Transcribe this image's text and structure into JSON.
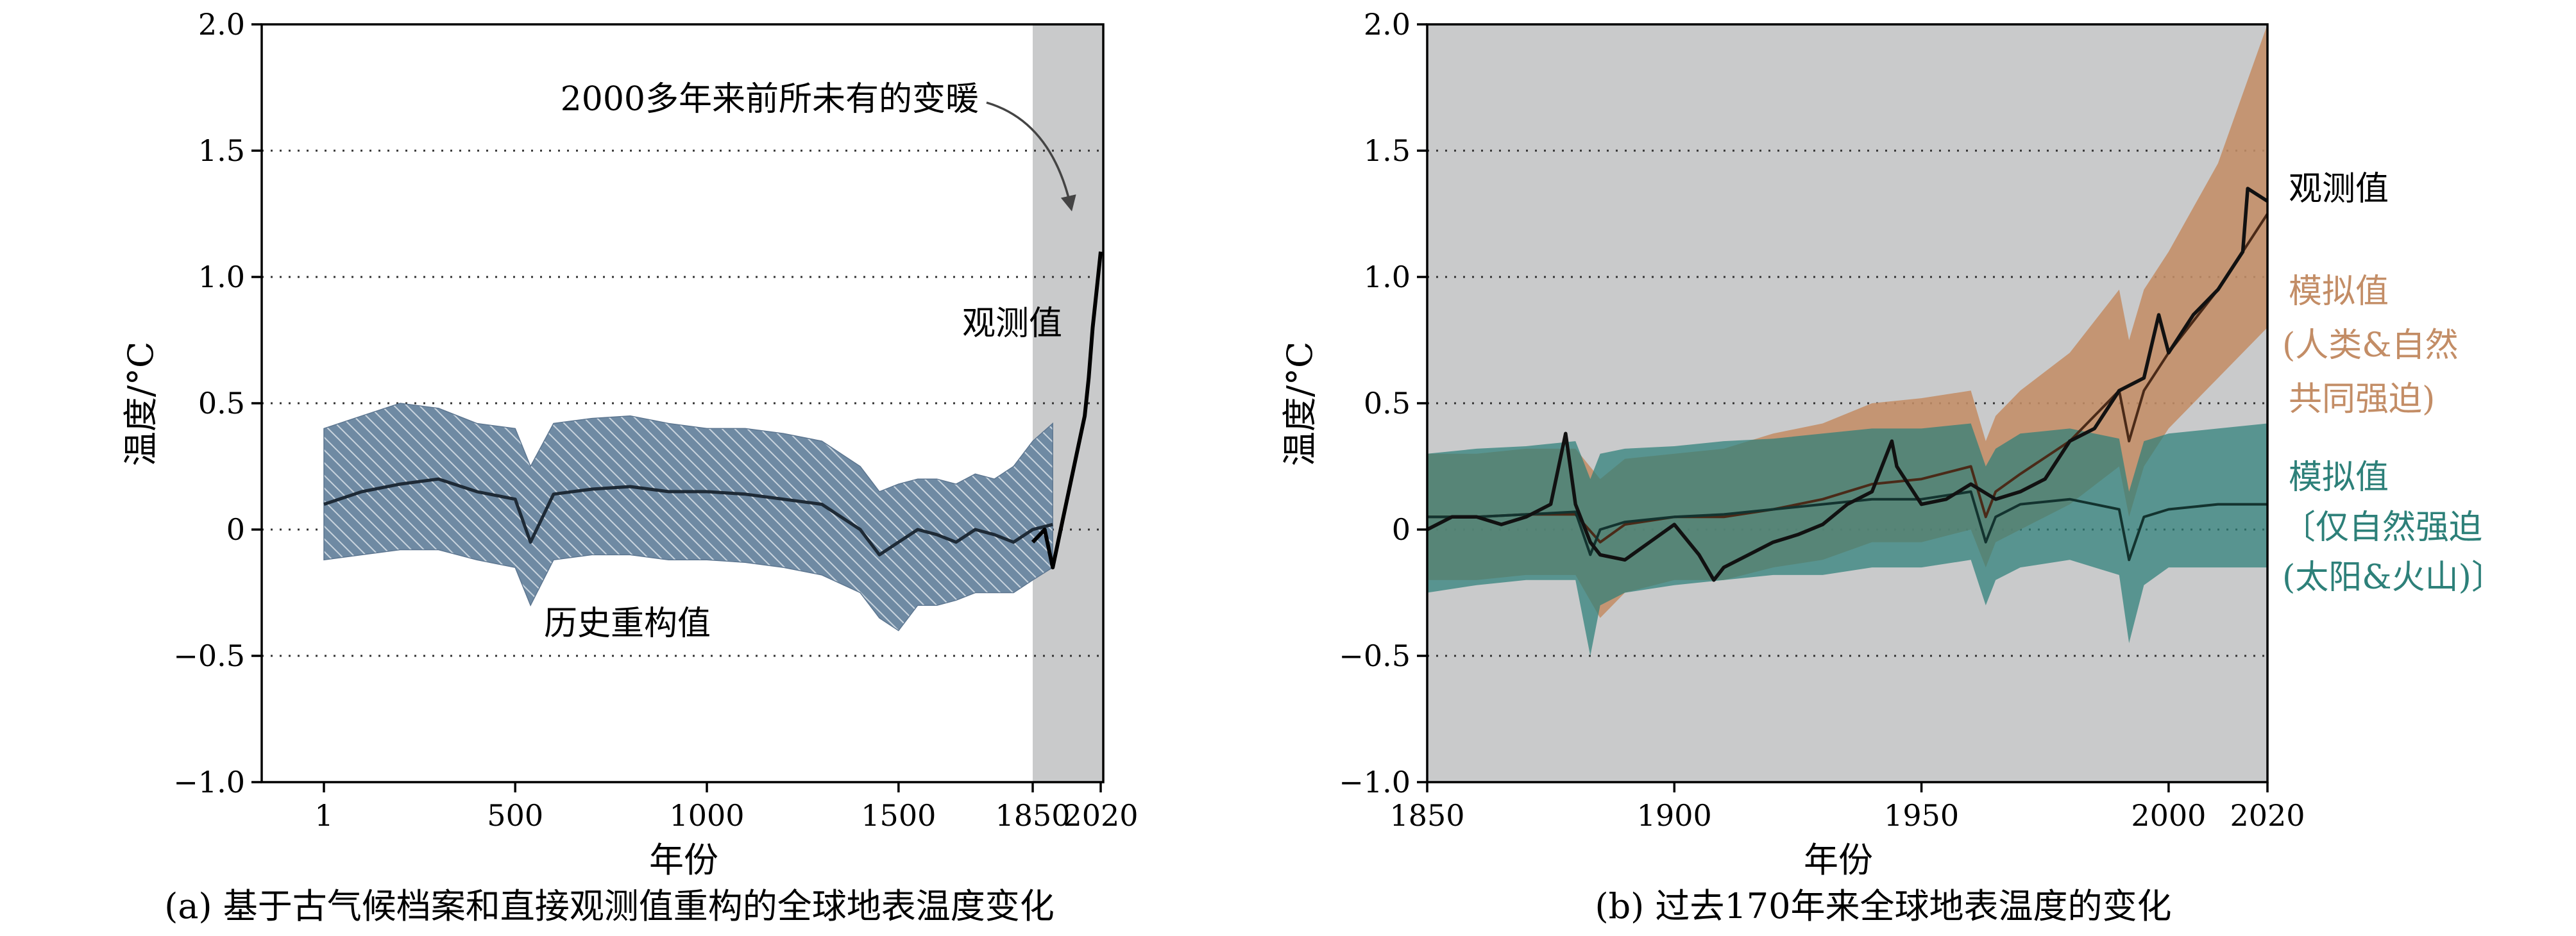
{
  "chart_data": [
    {
      "type": "line",
      "panel_caption": "(a) 基于古气候档案和直接观测值重构的全球地表温度变化",
      "xlabel": "年份",
      "ylabel": "温度/°C",
      "ylim": [
        -1.0,
        2.0
      ],
      "yticks": [
        -1.0,
        -0.5,
        0,
        0.5,
        1.0,
        1.5,
        2.0
      ],
      "ytick_labels": [
        "−1.0",
        "−0.5",
        "0",
        "0.5",
        "1.0",
        "1.5",
        "2.0"
      ],
      "xticks": [
        1,
        500,
        1000,
        1500,
        1850,
        2020
      ],
      "xtick_labels": [
        "1",
        "500",
        "1000",
        "1500",
        "1850",
        "2020"
      ],
      "x_axis_note": "broken scale: 1–1850 compressed, 1850–2020 expanded",
      "grid": "horizontal dotted",
      "shaded_period": {
        "from": 1850,
        "to": 2020,
        "color": "#c9cacb"
      },
      "annotations": {
        "unprecedented": "2000多年来前所未有的变暖",
        "observed": "观测值",
        "reconstruction": "历史重构值"
      },
      "colors": {
        "reconstruction_band": "#6f8aa3",
        "hatch": "#c9d4de",
        "line": "#1e2a36",
        "observed": "#000000"
      },
      "series": [
        {
          "name": "历史重构值",
          "x": [
            1,
            100,
            200,
            300,
            400,
            500,
            540,
            600,
            700,
            800,
            900,
            1000,
            1100,
            1200,
            1300,
            1400,
            1450,
            1500,
            1550,
            1600,
            1650,
            1700,
            1750,
            1800,
            1850,
            1900
          ],
          "y": [
            0.1,
            0.15,
            0.18,
            0.2,
            0.15,
            0.12,
            -0.05,
            0.14,
            0.16,
            0.17,
            0.15,
            0.15,
            0.14,
            0.12,
            0.1,
            0.0,
            -0.1,
            -0.05,
            0.0,
            -0.02,
            -0.05,
            0.0,
            -0.02,
            -0.05,
            0.0,
            0.02
          ],
          "lower": [
            -0.12,
            -0.1,
            -0.08,
            -0.08,
            -0.12,
            -0.15,
            -0.3,
            -0.12,
            -0.1,
            -0.1,
            -0.12,
            -0.12,
            -0.13,
            -0.15,
            -0.18,
            -0.25,
            -0.35,
            -0.4,
            -0.3,
            -0.3,
            -0.28,
            -0.25,
            -0.25,
            -0.25,
            -0.2,
            -0.15
          ],
          "upper": [
            0.4,
            0.45,
            0.5,
            0.48,
            0.42,
            0.4,
            0.25,
            0.42,
            0.44,
            0.45,
            0.42,
            0.4,
            0.4,
            0.38,
            0.35,
            0.25,
            0.15,
            0.18,
            0.2,
            0.2,
            0.18,
            0.22,
            0.2,
            0.25,
            0.35,
            0.42
          ]
        },
        {
          "name": "观测值",
          "x": [
            1850,
            1880,
            1900,
            1920,
            1940,
            1960,
            1980,
            1990,
            2000,
            2010,
            2020
          ],
          "y": [
            -0.05,
            0.0,
            -0.15,
            0.0,
            0.15,
            0.3,
            0.45,
            0.6,
            0.8,
            0.95,
            1.1
          ]
        }
      ]
    },
    {
      "type": "line",
      "panel_caption": "(b) 过去170年来全球地表温度的变化",
      "xlabel": "年份",
      "ylabel": "温度/°C",
      "xlim": [
        1850,
        2020
      ],
      "ylim": [
        -1.0,
        2.0
      ],
      "yticks": [
        -1.0,
        -0.5,
        0,
        0.5,
        1.0,
        1.5,
        2.0
      ],
      "ytick_labels": [
        "−1.0",
        "−0.5",
        "0",
        "0.5",
        "1.0",
        "1.5",
        "2.0"
      ],
      "xticks": [
        1850,
        1900,
        1950,
        2000,
        2020
      ],
      "xtick_labels": [
        "1850",
        "1900",
        "1950",
        "2000",
        "2020"
      ],
      "grid": "horizontal dotted",
      "background": "#c9cacb",
      "colors": {
        "observed": "#111111",
        "human_natural": "#c38d66",
        "natural_only": "#2d8079",
        "overlap": "#6b5a3c"
      },
      "legend_labels": {
        "observed": "观测值",
        "human_natural_l1": "模拟值",
        "human_natural_l2": "(人类&自然",
        "human_natural_l3": "共同强迫)",
        "natural_l1": "模拟值",
        "natural_l2": "〔仅自然强迫",
        "natural_l3": "(太阳&火山)〕"
      },
      "series": [
        {
          "name": "观测值",
          "x": [
            1850,
            1855,
            1860,
            1865,
            1870,
            1875,
            1878,
            1880,
            1883,
            1885,
            1890,
            1895,
            1900,
            1905,
            1908,
            1910,
            1915,
            1920,
            1925,
            1930,
            1935,
            1940,
            1944,
            1945,
            1950,
            1955,
            1960,
            1965,
            1970,
            1975,
            1980,
            1985,
            1990,
            1995,
            1998,
            2000,
            2005,
            2010,
            2015,
            2016,
            2020
          ],
          "y": [
            0.0,
            0.05,
            0.05,
            0.02,
            0.05,
            0.1,
            0.38,
            0.1,
            -0.05,
            -0.1,
            -0.12,
            -0.05,
            0.02,
            -0.1,
            -0.2,
            -0.15,
            -0.1,
            -0.05,
            -0.02,
            0.02,
            0.1,
            0.15,
            0.35,
            0.25,
            0.1,
            0.12,
            0.18,
            0.12,
            0.15,
            0.2,
            0.35,
            0.4,
            0.55,
            0.6,
            0.85,
            0.7,
            0.85,
            0.95,
            1.1,
            1.35,
            1.3
          ]
        },
        {
          "name": "模拟值(人类&自然共同强迫)",
          "x": [
            1850,
            1860,
            1870,
            1880,
            1885,
            1890,
            1900,
            1910,
            1920,
            1930,
            1940,
            1950,
            1960,
            1963,
            1965,
            1970,
            1980,
            1990,
            1992,
            1995,
            2000,
            2010,
            2020
          ],
          "y": [
            0.05,
            0.05,
            0.06,
            0.06,
            -0.05,
            0.02,
            0.05,
            0.05,
            0.08,
            0.12,
            0.18,
            0.2,
            0.25,
            0.05,
            0.15,
            0.22,
            0.35,
            0.55,
            0.35,
            0.55,
            0.7,
            0.95,
            1.25
          ],
          "lower": [
            -0.2,
            -0.2,
            -0.18,
            -0.18,
            -0.35,
            -0.25,
            -0.2,
            -0.2,
            -0.15,
            -0.12,
            -0.05,
            -0.05,
            0.0,
            -0.15,
            -0.05,
            0.0,
            0.1,
            0.25,
            0.05,
            0.25,
            0.4,
            0.6,
            0.8
          ],
          "upper": [
            0.3,
            0.3,
            0.32,
            0.32,
            0.2,
            0.28,
            0.3,
            0.32,
            0.38,
            0.42,
            0.5,
            0.52,
            0.55,
            0.35,
            0.45,
            0.55,
            0.7,
            0.95,
            0.75,
            0.95,
            1.1,
            1.45,
            2.0
          ]
        },
        {
          "name": "模拟值(仅自然强迫)",
          "x": [
            1850,
            1860,
            1870,
            1880,
            1883,
            1885,
            1890,
            1900,
            1910,
            1920,
            1930,
            1940,
            1950,
            1960,
            1963,
            1965,
            1970,
            1980,
            1985,
            1990,
            1992,
            1995,
            2000,
            2010,
            2020
          ],
          "y": [
            0.05,
            0.05,
            0.06,
            0.07,
            -0.1,
            0.0,
            0.03,
            0.05,
            0.06,
            0.08,
            0.1,
            0.12,
            0.12,
            0.15,
            -0.05,
            0.05,
            0.1,
            0.12,
            0.1,
            0.08,
            -0.12,
            0.05,
            0.08,
            0.1,
            0.1
          ],
          "lower": [
            -0.25,
            -0.22,
            -0.2,
            -0.2,
            -0.5,
            -0.3,
            -0.25,
            -0.22,
            -0.2,
            -0.18,
            -0.18,
            -0.15,
            -0.15,
            -0.12,
            -0.3,
            -0.2,
            -0.15,
            -0.12,
            -0.15,
            -0.18,
            -0.45,
            -0.22,
            -0.15,
            -0.15,
            -0.15
          ],
          "upper": [
            0.3,
            0.32,
            0.33,
            0.35,
            0.2,
            0.3,
            0.32,
            0.33,
            0.35,
            0.36,
            0.38,
            0.4,
            0.4,
            0.42,
            0.25,
            0.32,
            0.38,
            0.4,
            0.38,
            0.36,
            0.15,
            0.35,
            0.38,
            0.4,
            0.42
          ]
        }
      ]
    }
  ]
}
